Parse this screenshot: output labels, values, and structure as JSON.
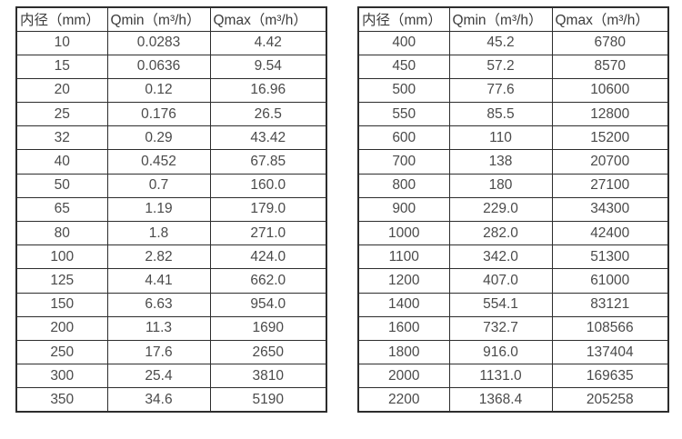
{
  "colors": {
    "table_border": "#2d2d2d",
    "header_text": "#3c3c3c",
    "cell_text": "#4a4a4a",
    "background": "#ffffff"
  },
  "tables": [
    {
      "name": "flow-table-left",
      "headers": [
        "内径（mm）",
        "Qmin（m³/h）",
        "Qmax（m³/h）"
      ],
      "rows": [
        [
          "10",
          "0.0283",
          "4.42"
        ],
        [
          "15",
          "0.0636",
          "9.54"
        ],
        [
          "20",
          "0.12",
          "16.96"
        ],
        [
          "25",
          "0.176",
          "26.5"
        ],
        [
          "32",
          "0.29",
          "43.42"
        ],
        [
          "40",
          "0.452",
          "67.85"
        ],
        [
          "50",
          "0.7",
          "160.0"
        ],
        [
          "65",
          "1.19",
          "179.0"
        ],
        [
          "80",
          "1.8",
          "271.0"
        ],
        [
          "100",
          "2.82",
          "424.0"
        ],
        [
          "125",
          "4.41",
          "662.0"
        ],
        [
          "150",
          "6.63",
          "954.0"
        ],
        [
          "200",
          "11.3",
          "1690"
        ],
        [
          "250",
          "17.6",
          "2650"
        ],
        [
          "300",
          "25.4",
          "3810"
        ],
        [
          "350",
          "34.6",
          "5190"
        ]
      ]
    },
    {
      "name": "flow-table-right",
      "headers": [
        "内径（mm）",
        "Qmin（m³/h）",
        "Qmax（m³/h）"
      ],
      "rows": [
        [
          "400",
          "45.2",
          "6780"
        ],
        [
          "450",
          "57.2",
          "8570"
        ],
        [
          "500",
          "77.6",
          "10600"
        ],
        [
          "550",
          "85.5",
          "12800"
        ],
        [
          "600",
          "110",
          "15200"
        ],
        [
          "700",
          "138",
          "20700"
        ],
        [
          "800",
          "180",
          "27100"
        ],
        [
          "900",
          "229.0",
          "34300"
        ],
        [
          "1000",
          "282.0",
          "42400"
        ],
        [
          "1100",
          "342.0",
          "51300"
        ],
        [
          "1200",
          "407.0",
          "61000"
        ],
        [
          "1400",
          "554.1",
          "83121"
        ],
        [
          "1600",
          "732.7",
          "108566"
        ],
        [
          "1800",
          "916.0",
          "137404"
        ],
        [
          "2000",
          "1131.0",
          "169635"
        ],
        [
          "2200",
          "1368.4",
          "205258"
        ]
      ]
    }
  ],
  "chart_data": [
    {
      "type": "table",
      "title": "",
      "columns": [
        "内径（mm）",
        "Qmin（m³/h）",
        "Qmax（m³/h）"
      ],
      "rows": [
        [
          10,
          0.0283,
          4.42
        ],
        [
          15,
          0.0636,
          9.54
        ],
        [
          20,
          0.12,
          16.96
        ],
        [
          25,
          0.176,
          26.5
        ],
        [
          32,
          0.29,
          43.42
        ],
        [
          40,
          0.452,
          67.85
        ],
        [
          50,
          0.7,
          160.0
        ],
        [
          65,
          1.19,
          179.0
        ],
        [
          80,
          1.8,
          271.0
        ],
        [
          100,
          2.82,
          424.0
        ],
        [
          125,
          4.41,
          662.0
        ],
        [
          150,
          6.63,
          954.0
        ],
        [
          200,
          11.3,
          1690
        ],
        [
          250,
          17.6,
          2650
        ],
        [
          300,
          25.4,
          3810
        ],
        [
          350,
          34.6,
          5190
        ]
      ]
    },
    {
      "type": "table",
      "title": "",
      "columns": [
        "内径（mm）",
        "Qmin（m³/h）",
        "Qmax（m³/h）"
      ],
      "rows": [
        [
          400,
          45.2,
          6780
        ],
        [
          450,
          57.2,
          8570
        ],
        [
          500,
          77.6,
          10600
        ],
        [
          550,
          85.5,
          12800
        ],
        [
          600,
          110,
          15200
        ],
        [
          700,
          138,
          20700
        ],
        [
          800,
          180,
          27100
        ],
        [
          900,
          229.0,
          34300
        ],
        [
          1000,
          282.0,
          42400
        ],
        [
          1100,
          342.0,
          51300
        ],
        [
          1200,
          407.0,
          61000
        ],
        [
          1400,
          554.1,
          83121
        ],
        [
          1600,
          732.7,
          108566
        ],
        [
          1800,
          916.0,
          137404
        ],
        [
          2000,
          1131.0,
          169635
        ],
        [
          2200,
          1368.4,
          205258
        ]
      ]
    }
  ]
}
